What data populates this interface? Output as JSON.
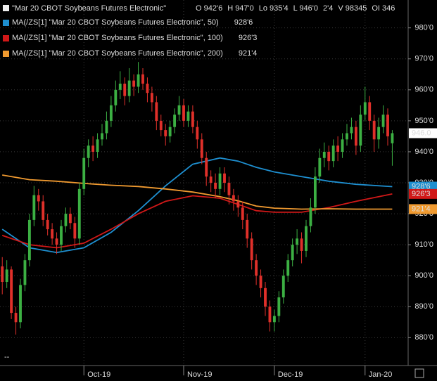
{
  "chart_data": {
    "type": "candlestick",
    "title": "\"Mar 20 CBOT Soybeans Futures Electronic\"",
    "quote": [
      "O 942'6",
      "H 947'0",
      "Lo 935'4",
      "L 946'0",
      "2'4",
      "V 98345",
      "OI 346"
    ],
    "last_price_label": "946.0",
    "up_color": "#3cb043",
    "down_color": "#e0302a",
    "xlim": [
      -0.5,
      89.5
    ],
    "xticks": [
      {
        "value": 18,
        "label": "Oct-19"
      },
      {
        "value": 40,
        "label": "Nov-19"
      },
      {
        "value": 60,
        "label": "Dec-19"
      },
      {
        "value": 80,
        "label": "Jan-20"
      }
    ],
    "ylim": [
      871,
      989
    ],
    "yticks": [
      {
        "value": 880,
        "label": "880'0"
      },
      {
        "value": 890,
        "label": "890'0"
      },
      {
        "value": 900,
        "label": "900'0"
      },
      {
        "value": 910,
        "label": "910'0"
      },
      {
        "value": 920,
        "label": "920'0"
      },
      {
        "value": 930,
        "label": "930'0"
      },
      {
        "value": 940,
        "label": "940'0"
      },
      {
        "value": 950,
        "label": "950'0"
      },
      {
        "value": 960,
        "label": "960'0"
      },
      {
        "value": 970,
        "label": "970'0"
      },
      {
        "value": 980,
        "label": "980'0"
      }
    ],
    "grid": true,
    "open": [
      903,
      898,
      902,
      888,
      885,
      897,
      905,
      918,
      926,
      924,
      918,
      915,
      912,
      910,
      916,
      920,
      917,
      912,
      928,
      938,
      942,
      940,
      944,
      946,
      950,
      955,
      960,
      962,
      958,
      963,
      961,
      965,
      962,
      959,
      956,
      950,
      947,
      945,
      948,
      952,
      955,
      950,
      953,
      948,
      944,
      938,
      932,
      930,
      928,
      933,
      930,
      926,
      924,
      922,
      918,
      912,
      905,
      900,
      896,
      890,
      885,
      887,
      893,
      900,
      905,
      910,
      912,
      908,
      916,
      922,
      932,
      938,
      940,
      937,
      942,
      940,
      944,
      946,
      948,
      942,
      952,
      956,
      950,
      944,
      948,
      952,
      942.75
    ],
    "high": [
      906,
      905,
      903,
      890,
      899,
      907,
      920,
      929,
      928,
      926,
      920,
      917,
      914,
      918,
      922,
      922,
      919,
      930,
      941,
      944,
      945,
      946,
      949,
      953,
      958,
      963,
      966,
      964,
      967,
      965,
      969,
      967,
      964,
      961,
      958,
      952,
      949,
      950,
      954,
      958,
      957,
      955,
      955,
      950,
      946,
      940,
      934,
      933,
      935,
      935,
      932,
      928,
      926,
      924,
      920,
      914,
      907,
      902,
      898,
      892,
      889,
      895,
      902,
      907,
      912,
      915,
      914,
      918,
      925,
      935,
      941,
      943,
      942,
      944,
      945,
      946,
      949,
      951,
      950,
      955,
      961,
      958,
      952,
      951,
      955,
      954,
      947
    ],
    "low": [
      894,
      896,
      886,
      881,
      883,
      895,
      903,
      916,
      921,
      916,
      913,
      910,
      907,
      908,
      914,
      915,
      909,
      910,
      926,
      935,
      937,
      938,
      942,
      944,
      948,
      953,
      957,
      955,
      956,
      958,
      959,
      960,
      956,
      953,
      947,
      945,
      942,
      943,
      946,
      950,
      948,
      948,
      946,
      941,
      936,
      929,
      927,
      925,
      926,
      927,
      923,
      921,
      919,
      915,
      909,
      902,
      897,
      893,
      887,
      882,
      882,
      885,
      891,
      898,
      903,
      907,
      904,
      906,
      914,
      920,
      930,
      935,
      934,
      935,
      937,
      938,
      942,
      944,
      939,
      940,
      950,
      947,
      940,
      941,
      946,
      942,
      935.5
    ],
    "close": [
      898,
      902,
      888,
      885,
      897,
      905,
      918,
      926,
      924,
      918,
      915,
      912,
      910,
      916,
      920,
      917,
      912,
      928,
      938,
      942,
      940,
      944,
      946,
      950,
      955,
      960,
      962,
      958,
      963,
      961,
      965,
      962,
      959,
      956,
      950,
      947,
      945,
      948,
      952,
      955,
      950,
      953,
      948,
      944,
      938,
      932,
      930,
      928,
      933,
      930,
      926,
      924,
      922,
      918,
      912,
      905,
      900,
      896,
      890,
      885,
      887,
      893,
      900,
      905,
      910,
      912,
      908,
      916,
      922,
      932,
      938,
      940,
      937,
      942,
      940,
      944,
      946,
      948,
      942,
      952,
      956,
      950,
      944,
      948,
      952,
      945,
      946
    ],
    "series": [
      {
        "name": "MA(/ZS[1] \"Mar 20 CBOT Soybeans Futures Electronic\", 50)",
        "color": "#1e8fd0",
        "value_label": "928'6",
        "x": [
          0,
          6,
          12,
          18,
          24,
          30,
          36,
          42,
          48,
          52,
          56,
          60,
          66,
          72,
          78,
          86
        ],
        "values": [
          915,
          909,
          907.5,
          909,
          914,
          921,
          929,
          936,
          938,
          937,
          935,
          933.5,
          932,
          930.5,
          929.5,
          928.75
        ]
      },
      {
        "name": "MA(/ZS[1] \"Mar 20 CBOT Soybeans Futures Electronic\", 100)",
        "color": "#d01818",
        "value_label": "926'3",
        "x": [
          0,
          6,
          12,
          18,
          24,
          30,
          36,
          42,
          48,
          52,
          56,
          60,
          66,
          72,
          78,
          86
        ],
        "values": [
          913,
          910,
          909,
          910.5,
          915,
          920,
          924,
          925.8,
          925,
          923,
          921,
          920.5,
          920.5,
          922,
          924,
          926.4
        ]
      },
      {
        "name": "MA(/ZS[1] \"Mar 20 CBOT Soybeans Futures Electronic\", 200)",
        "color": "#f09a30",
        "value_label": "921'4",
        "x": [
          0,
          6,
          12,
          18,
          24,
          30,
          36,
          42,
          48,
          52,
          56,
          60,
          66,
          72,
          78,
          86
        ],
        "values": [
          932.5,
          931,
          930.5,
          929.8,
          929.2,
          928.8,
          928,
          927,
          925.5,
          924.2,
          922.5,
          921.8,
          921.5,
          921.6,
          921.5,
          921.5
        ]
      }
    ]
  }
}
